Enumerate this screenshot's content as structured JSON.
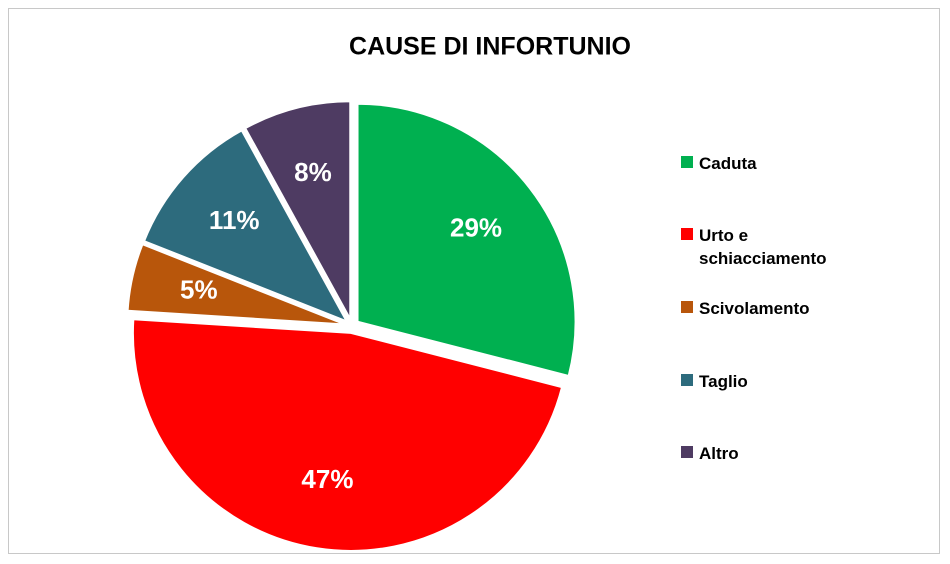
{
  "chart_data": {
    "type": "pie",
    "title": "CAUSE DI INFORTUNIO",
    "categories": [
      "Caduta",
      "Urto e schiacciamento",
      "Scivolamento",
      "Taglio",
      "Altro"
    ],
    "values": [
      29,
      47,
      5,
      11,
      8
    ],
    "value_labels": [
      "29%",
      "47%",
      "5%",
      "11%",
      "8%"
    ],
    "colors": [
      "#00b050",
      "#ff0000",
      "#b8560b",
      "#2d6b7d",
      "#4e3b62"
    ]
  }
}
